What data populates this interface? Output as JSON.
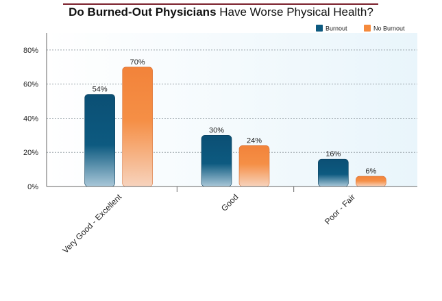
{
  "title": {
    "bold": "Do Burned-Out Physicians",
    "rest": "Have Worse Physical Health?"
  },
  "colors": {
    "burnout": "#0d5a80",
    "no_burnout": "#f58a3d",
    "title_rule": "#7a1f2b",
    "plot_bg": "#eef7fc"
  },
  "chart_data": {
    "type": "bar",
    "categories": [
      "Very Good - Excellent",
      "Good",
      "Poor - Fair"
    ],
    "series": [
      {
        "name": "Burnout",
        "values": [
          54,
          30,
          16
        ]
      },
      {
        "name": "No Burnout",
        "values": [
          70,
          24,
          6
        ]
      }
    ],
    "data_labels": [
      [
        "54%",
        "30%",
        "16%"
      ],
      [
        "70%",
        "24%",
        "6%"
      ]
    ],
    "yticks": [
      "0%",
      "20%",
      "40%",
      "60%",
      "80%"
    ],
    "ytick_values": [
      0,
      20,
      40,
      60,
      80
    ],
    "ylim": [
      0,
      90
    ],
    "grid": true,
    "legend_position": "top-right"
  }
}
